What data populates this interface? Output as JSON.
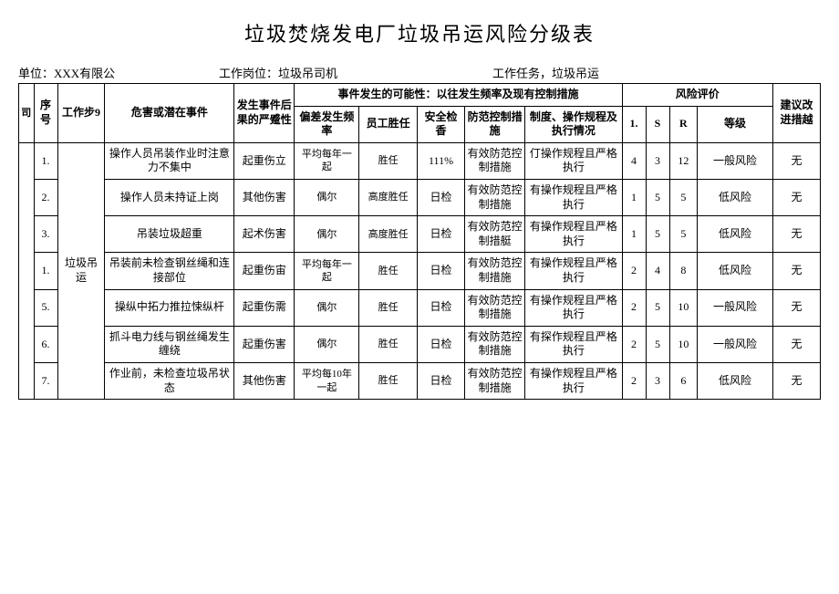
{
  "title": "垃圾焚烧发电厂垃圾吊运风险分级表",
  "meta": {
    "unit_label": "单位：",
    "unit_value": "XXX有限公",
    "post_label": "工作岗位：",
    "post_value": "垃圾吊司机",
    "task_label": "工作任务，",
    "task_value": "垃圾吊运"
  },
  "header": {
    "si": "司",
    "seq": "序号",
    "step": "工作步9",
    "hazard": "危害或潜在事件",
    "consequence": "发生事件后果的严蹙性",
    "possibility": "事件发生的可能性：以往发生频率及现有控制措施",
    "risk_eval": "风险评价",
    "suggest": "建议改进措越",
    "freq": "偏差发生频率",
    "competence": "员工胜任",
    "safety_check": "安全检香",
    "prevention": "防范控制措施",
    "system": "制度、操作规程及执行情况",
    "l": "1.",
    "s": "S",
    "r": "R",
    "level": "等级"
  },
  "step_name": "垃圾吊运",
  "rows": [
    {
      "seq": "1.",
      "hazard": "操作人员吊装作业时注意力不集中",
      "cons": "起重伤立",
      "freq": "平均每年一起",
      "comp": "胜任",
      "safe": "111%",
      "prev": "有效防范控制措施",
      "sys": "仃操作规程且严格执行",
      "l": "4",
      "s": "3",
      "r": "12",
      "level": "一般风险",
      "sugg": "无"
    },
    {
      "seq": "2.",
      "hazard": "操作人员未持证上岗",
      "cons": "其他伤害",
      "freq": "偶尔",
      "comp": "高度胜任",
      "safe": "日检",
      "prev": "有效防范控制措施",
      "sys": "有操作规程且严格执行",
      "l": "1",
      "s": "5",
      "r": "5",
      "level": "低风险",
      "sugg": "无"
    },
    {
      "seq": "3.",
      "hazard": "吊装垃圾超重",
      "cons": "起术伤害",
      "freq": "偶尔",
      "comp": "高度胜任",
      "safe": "日检",
      "prev": "有效防范控制措艇",
      "sys": "有操作规程且严格执行",
      "l": "1",
      "s": "5",
      "r": "5",
      "level": "低风险",
      "sugg": "无"
    },
    {
      "seq": "1.",
      "hazard": "吊装前未检查钢丝绳和连接部位",
      "cons": "起重伤宙",
      "freq": "平均每年一起",
      "comp": "胜任",
      "safe": "日检",
      "prev": "有效防范控制措施",
      "sys": "有操作规程且严格执行",
      "l": "2",
      "s": "4",
      "r": "8",
      "level": "低风险",
      "sugg": "无"
    },
    {
      "seq": "5.",
      "hazard": "操纵中拓力推拉悚纵杆",
      "cons": "起重伤需",
      "freq": "偶尔",
      "comp": "胜任",
      "safe": "日检",
      "prev": "有效防范控制措施",
      "sys": "有操作规程且严格执行",
      "l": "2",
      "s": "5",
      "r": "10",
      "level": "一般风险",
      "sugg": "无"
    },
    {
      "seq": "6.",
      "hazard": "抓斗电力线与钢丝绳发生缠绕",
      "cons": "起重伤害",
      "freq": "偶尔",
      "comp": "胜任",
      "safe": "日检",
      "prev": "有效防范控制措施",
      "sys": "有探作规程且严格执行",
      "l": "2",
      "s": "5",
      "r": "10",
      "level": "一般风险",
      "sugg": "无"
    },
    {
      "seq": "7.",
      "hazard": "作业前，未检查垃圾吊状态",
      "cons": "其他伤害",
      "freq": "平均每10年一起",
      "comp": "胜任",
      "safe": "日检",
      "prev": "有效防范控制措施",
      "sys": "有操作规程且严格执行",
      "l": "2",
      "s": "3",
      "r": "6",
      "level": "低风险",
      "sugg": "无"
    }
  ]
}
